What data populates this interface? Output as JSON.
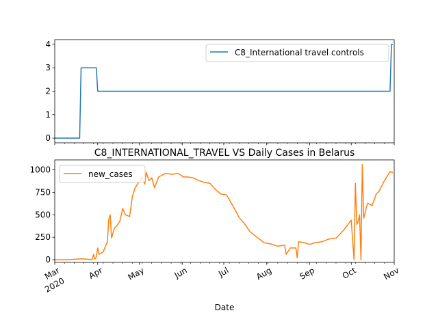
{
  "chart_data": [
    {
      "type": "line",
      "title": "",
      "xlabel": "",
      "ylabel": "",
      "ylim": [
        -0.2,
        4.2
      ],
      "yticks": [
        "0",
        "1",
        "2",
        "3",
        "4"
      ],
      "legend_position": "upper right",
      "grid": false,
      "series": [
        {
          "name": "C8_International travel controls",
          "color": "#1f77b4",
          "x": [
            "2020-03-01",
            "2020-03-19",
            "2020-03-20",
            "2020-03-31",
            "2020-04-01",
            "2020-10-29",
            "2020-10-30",
            "2020-10-31"
          ],
          "y": [
            0,
            0,
            3,
            3,
            2,
            2,
            4,
            4
          ]
        }
      ]
    },
    {
      "type": "line",
      "title": "C8_INTERNATIONAL_TRAVEL VS Daily Cases in Belarus",
      "xlabel": "Date",
      "ylabel": "",
      "ylim": [
        -30,
        1110
      ],
      "yticks": [
        "0",
        "250",
        "500",
        "750",
        "1000"
      ],
      "xticks": [
        {
          "label": "Mar",
          "sublabel": "2020"
        },
        {
          "label": "Apr"
        },
        {
          "label": "May"
        },
        {
          "label": "Jun"
        },
        {
          "label": "Jul"
        },
        {
          "label": "Aug"
        },
        {
          "label": "Sep"
        },
        {
          "label": "Oct"
        },
        {
          "label": "Nov"
        }
      ],
      "legend_position": "upper left",
      "grid": false,
      "series": [
        {
          "name": "new_cases",
          "color": "#ff7f0e",
          "x": [
            "2020-03-01",
            "2020-03-10",
            "2020-03-20",
            "2020-03-25",
            "2020-03-28",
            "2020-03-29",
            "2020-03-30",
            "2020-03-31",
            "2020-04-01",
            "2020-04-02",
            "2020-04-05",
            "2020-04-08",
            "2020-04-09",
            "2020-04-10",
            "2020-04-11",
            "2020-04-13",
            "2020-04-15",
            "2020-04-17",
            "2020-04-19",
            "2020-04-21",
            "2020-04-24",
            "2020-04-26",
            "2020-04-28",
            "2020-05-01",
            "2020-05-03",
            "2020-05-05",
            "2020-05-06",
            "2020-05-08",
            "2020-05-10",
            "2020-05-12",
            "2020-05-15",
            "2020-05-20",
            "2020-05-25",
            "2020-05-29",
            "2020-06-02",
            "2020-06-05",
            "2020-06-09",
            "2020-06-13",
            "2020-06-17",
            "2020-06-21",
            "2020-06-25",
            "2020-06-29",
            "2020-07-03",
            "2020-07-06",
            "2020-07-09",
            "2020-07-12",
            "2020-07-16",
            "2020-07-20",
            "2020-07-25",
            "2020-07-30",
            "2020-08-04",
            "2020-08-09",
            "2020-08-13",
            "2020-08-14",
            "2020-08-15",
            "2020-08-18",
            "2020-08-22",
            "2020-08-23",
            "2020-08-24",
            "2020-08-28",
            "2020-09-01",
            "2020-09-05",
            "2020-09-10",
            "2020-09-15",
            "2020-09-20",
            "2020-09-25",
            "2020-09-28",
            "2020-10-01",
            "2020-10-03",
            "2020-10-04",
            "2020-10-05",
            "2020-10-06",
            "2020-10-07",
            "2020-10-08",
            "2020-10-09",
            "2020-10-10",
            "2020-10-11",
            "2020-10-12",
            "2020-10-13",
            "2020-10-16",
            "2020-10-19",
            "2020-10-21",
            "2020-10-25",
            "2020-10-29",
            "2020-10-31"
          ],
          "y": [
            0,
            0,
            10,
            5,
            0,
            60,
            5,
            30,
            130,
            60,
            90,
            200,
            450,
            500,
            240,
            350,
            380,
            430,
            570,
            500,
            480,
            700,
            800,
            870,
            920,
            840,
            970,
            880,
            910,
            800,
            920,
            960,
            950,
            960,
            920,
            920,
            910,
            880,
            860,
            850,
            780,
            730,
            720,
            640,
            560,
            470,
            400,
            310,
            250,
            190,
            175,
            150,
            160,
            160,
            60,
            130,
            130,
            20,
            200,
            190,
            170,
            190,
            200,
            230,
            240,
            320,
            380,
            440,
            0,
            850,
            390,
            430,
            500,
            0,
            1060,
            460,
            520,
            590,
            630,
            600,
            730,
            760,
            880,
            980,
            970
          ]
        }
      ]
    }
  ]
}
